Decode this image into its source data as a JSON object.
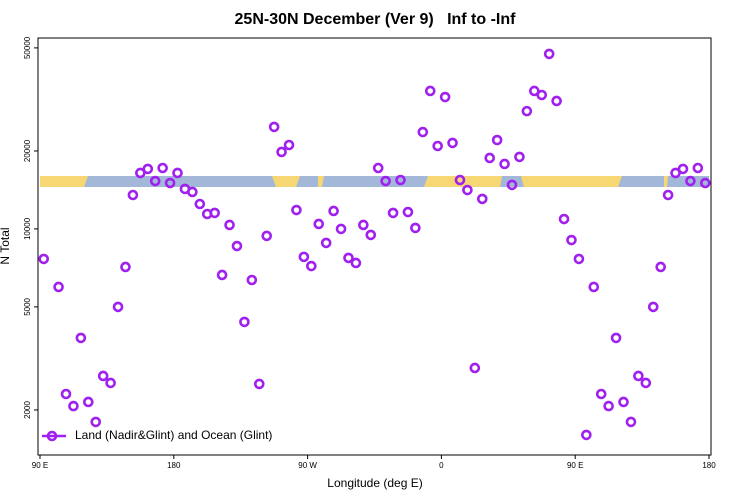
{
  "chart_data": {
    "type": "scatter",
    "title": "25N-30N December (Ver 9)   Inf to -Inf",
    "x_label": "Longitude (deg E)",
    "y_label": "N Total",
    "yscale": "log",
    "xlim": [
      90,
      540
    ],
    "ylim": [
      1340,
      54600
    ],
    "xticks": [
      {
        "value": 90,
        "label": "90 E"
      },
      {
        "value": 180,
        "label": "180"
      },
      {
        "value": 270,
        "label": "90 W"
      },
      {
        "value": 360,
        "label": "0"
      },
      {
        "value": 450,
        "label": "90 E"
      },
      {
        "value": 540,
        "label": "180"
      }
    ],
    "yticks": [
      2000,
      5000,
      10000,
      20000,
      50000
    ],
    "legend_position": "bottom-left",
    "series": [
      {
        "name": "Land (Nadir&Glint) and Ocean (Glint)",
        "color": "#a020f0",
        "x": [
          92.5,
          102.5,
          107.5,
          112.5,
          117.5,
          122.5,
          127.5,
          132.5,
          137.5,
          142.5,
          147.5,
          152.5,
          157.5,
          162.5,
          167.5,
          172.5,
          177.5,
          182.5,
          187.5,
          192.5,
          197.5,
          202.5,
          207.5,
          212.5,
          217.5,
          222.5,
          227.5,
          232.5,
          237.5,
          242.5,
          247.5,
          252.5,
          257.5,
          262.5,
          267.5,
          272.5,
          277.5,
          282.5,
          287.5,
          292.5,
          297.5,
          302.5,
          307.5,
          312.5,
          317.5,
          322.5,
          327.5,
          332.5,
          337.5,
          342.5,
          347.5,
          352.5,
          357.5,
          362.5,
          367.5,
          372.5,
          377.5,
          382.5,
          387.5,
          392.5,
          397.5,
          402.5,
          407.5,
          412.5,
          417.5,
          422.5,
          427.5,
          432.5,
          437.5,
          442.5,
          447.5,
          452.5,
          457.5,
          462.5,
          467.5,
          472.5,
          477.5,
          482.5,
          487.5,
          492.5,
          497.5,
          502.5,
          507.5,
          512.5,
          517.5,
          522.5,
          527.5,
          532.5,
          537.5
        ],
        "values": [
          7660,
          5970,
          2305,
          2070,
          3795,
          2147,
          1798,
          2706,
          2543,
          5000,
          7130,
          13520,
          16450,
          17050,
          15310,
          17190,
          15040,
          16450,
          14270,
          13890,
          12480,
          11420,
          11530,
          6640,
          10360,
          8590,
          4375,
          6350,
          2520,
          9400,
          24770,
          19820,
          21090,
          11830,
          7800,
          7190,
          10450,
          8830,
          11730,
          10000,
          7730,
          7390,
          10360,
          9480,
          17190,
          15310,
          11530,
          15450,
          11620,
          10090,
          23660,
          34100,
          20900,
          32300,
          21480,
          15450,
          14130,
          2905,
          13060,
          18790,
          22040,
          17820,
          14790,
          18970,
          28500,
          34100,
          32890,
          47400,
          31190,
          10920,
          9060,
          7660,
          1602,
          5970,
          2305,
          2070,
          3795,
          2147,
          1798,
          2706,
          2543,
          5000,
          7130,
          13520,
          16450,
          17050,
          15310,
          17190,
          15040
        ]
      }
    ]
  }
}
